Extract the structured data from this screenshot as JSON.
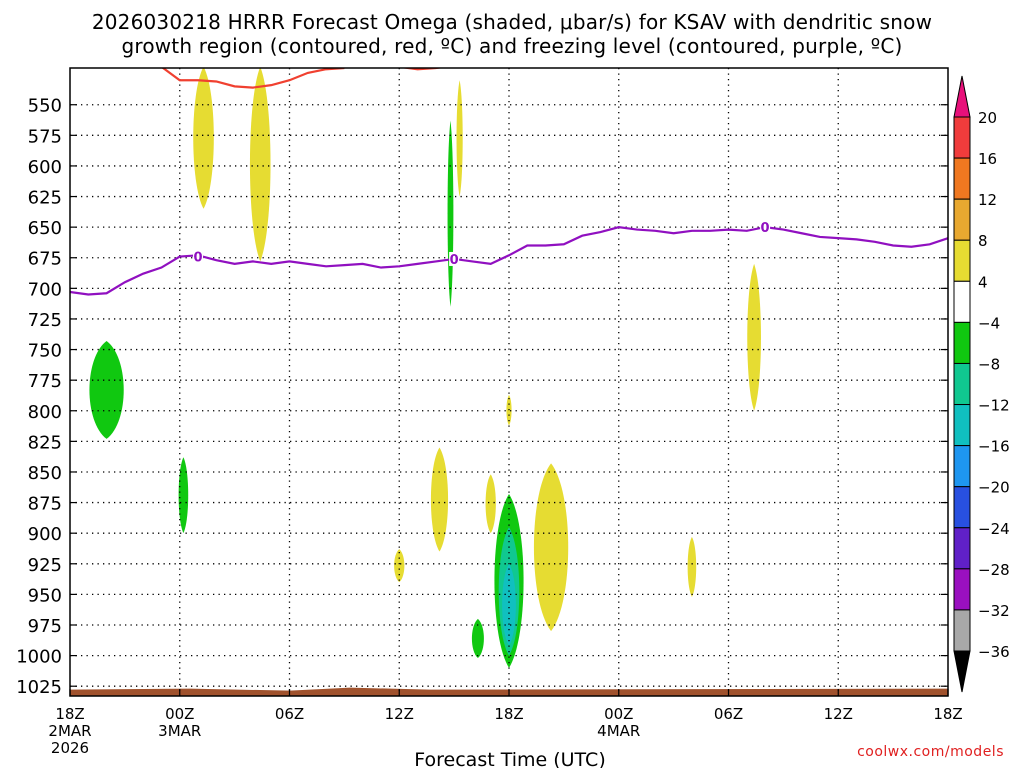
{
  "title_line1": "2026030218 HRRR Forecast Omega (shaded, μbar/s) for KSAV with dendritic snow",
  "title_line2": "growth region (contoured, red, ºC) and freezing level (contoured, purple, ºC)",
  "credit": "coolwx.com/models",
  "chart_data": {
    "type": "heatmap",
    "title": "2026030218 HRRR Forecast Omega (shaded, μbar/s) for KSAV with dendritic snow growth region (contoured, red, ºC) and freezing level (contoured, purple, ºC)",
    "xlabel": "Forecast Time (UTC)",
    "ylabel": "",
    "x_unit": "hours from 2026-03-02 18Z",
    "xlim": [
      0,
      48
    ],
    "ylim": [
      1033,
      520
    ],
    "y_scale": "pressure (hPa), increasing downward",
    "x_ticks": [
      {
        "x": 0,
        "label": "18Z",
        "sub": [
          "2MAR",
          "2026"
        ]
      },
      {
        "x": 6,
        "label": "00Z",
        "sub": [
          "3MAR"
        ]
      },
      {
        "x": 12,
        "label": "06Z",
        "sub": []
      },
      {
        "x": 18,
        "label": "12Z",
        "sub": []
      },
      {
        "x": 24,
        "label": "18Z",
        "sub": []
      },
      {
        "x": 30,
        "label": "00Z",
        "sub": [
          "4MAR"
        ]
      },
      {
        "x": 36,
        "label": "06Z",
        "sub": []
      },
      {
        "x": 42,
        "label": "12Z",
        "sub": []
      },
      {
        "x": 48,
        "label": "18Z",
        "sub": []
      }
    ],
    "y_ticks": [
      550,
      575,
      600,
      625,
      650,
      675,
      700,
      725,
      750,
      775,
      800,
      825,
      850,
      875,
      900,
      925,
      950,
      975,
      1000,
      1025
    ],
    "grid": true,
    "colorbar": {
      "labels": [
        "20",
        "16",
        "12",
        "8",
        "4",
        "−4",
        "−8",
        "−12",
        "−16",
        "−20",
        "−24",
        "−28",
        "−32",
        "−36"
      ],
      "colors": [
        "#f03c3c",
        "#f07820",
        "#e8a830",
        "#e6dc32",
        "#ffffff",
        "#10c810",
        "#10c890",
        "#10c0c0",
        "#1e96f0",
        "#2850e0",
        "#6020c8",
        "#9a10c0",
        "#a8a8a8"
      ],
      "top_arrow_color": "#e8107a",
      "bottom_arrow_color": "#000000"
    },
    "freezing_level": {
      "color": "#9010c0",
      "label": "0",
      "label_positions": [
        [
          7,
          674
        ],
        [
          21,
          676
        ],
        [
          38,
          650
        ]
      ],
      "points": [
        [
          0,
          703
        ],
        [
          1,
          705
        ],
        [
          2,
          704
        ],
        [
          3,
          695
        ],
        [
          4,
          688
        ],
        [
          5,
          683
        ],
        [
          6,
          674
        ],
        [
          7,
          673
        ],
        [
          8,
          677
        ],
        [
          9,
          680
        ],
        [
          10,
          678
        ],
        [
          11,
          680
        ],
        [
          12,
          678
        ],
        [
          13,
          680
        ],
        [
          14,
          682
        ],
        [
          15,
          681
        ],
        [
          16,
          680
        ],
        [
          17,
          683
        ],
        [
          18,
          682
        ],
        [
          19,
          680
        ],
        [
          20,
          678
        ],
        [
          21,
          676
        ],
        [
          22,
          678
        ],
        [
          23,
          680
        ],
        [
          24,
          673
        ],
        [
          25,
          665
        ],
        [
          26,
          665
        ],
        [
          27,
          664
        ],
        [
          28,
          657
        ],
        [
          29,
          654
        ],
        [
          30,
          650
        ],
        [
          31,
          652
        ],
        [
          32,
          653
        ],
        [
          33,
          655
        ],
        [
          34,
          653
        ],
        [
          35,
          653
        ],
        [
          36,
          652
        ],
        [
          37,
          653
        ],
        [
          38,
          650
        ],
        [
          39,
          652
        ],
        [
          40,
          655
        ],
        [
          41,
          658
        ],
        [
          42,
          659
        ],
        [
          43,
          660
        ],
        [
          44,
          662
        ],
        [
          45,
          665
        ],
        [
          46,
          666
        ],
        [
          47,
          664
        ],
        [
          48,
          659
        ]
      ]
    },
    "dgz_contour": {
      "color": "#f04030",
      "segments": [
        [
          [
            5,
            519
          ],
          [
            6,
            530
          ],
          [
            7,
            530
          ],
          [
            8,
            531
          ],
          [
            9,
            535
          ],
          [
            10,
            536
          ],
          [
            11,
            534
          ],
          [
            12,
            530
          ],
          [
            13,
            524
          ],
          [
            14,
            521
          ],
          [
            15,
            520
          ]
        ],
        [
          [
            18,
            519
          ],
          [
            19,
            521
          ],
          [
            20,
            520
          ],
          [
            20.5,
            519
          ]
        ]
      ]
    },
    "omega_regions": [
      {
        "value": 4,
        "color": "#e6dc32",
        "x_center": 7.3,
        "p_top": 519,
        "p_bottom": 635,
        "half_width_h": 0.6
      },
      {
        "value": 4,
        "color": "#e6dc32",
        "x_center": 10.4,
        "p_top": 519,
        "p_bottom": 678,
        "half_width_h": 0.6
      },
      {
        "value": 4,
        "color": "#e6dc32",
        "x_center": 21.3,
        "p_top": 530,
        "p_bottom": 625,
        "half_width_h": 0.18
      },
      {
        "value": 4,
        "color": "#e6dc32",
        "x_center": 37.4,
        "p_top": 680,
        "p_bottom": 800,
        "half_width_h": 0.4
      },
      {
        "value": 4,
        "color": "#e6dc32",
        "x_center": 24,
        "p_top": 787,
        "p_bottom": 812,
        "half_width_h": 0.15
      },
      {
        "value": 4,
        "color": "#e6dc32",
        "x_center": 20.2,
        "p_top": 830,
        "p_bottom": 915,
        "half_width_h": 0.5
      },
      {
        "value": 4,
        "color": "#e6dc32",
        "x_center": 23,
        "p_top": 852,
        "p_bottom": 900,
        "half_width_h": 0.3
      },
      {
        "value": 4,
        "color": "#e6dc32",
        "x_center": 26.3,
        "p_top": 843,
        "p_bottom": 980,
        "half_width_h": 1.0
      },
      {
        "value": 4,
        "color": "#e6dc32",
        "x_center": 18,
        "p_top": 913,
        "p_bottom": 940,
        "half_width_h": 0.3
      },
      {
        "value": 4,
        "color": "#e6dc32",
        "x_center": 34,
        "p_top": 903,
        "p_bottom": 952,
        "half_width_h": 0.25
      },
      {
        "value": -4,
        "color": "#10c810",
        "x_center": 20.8,
        "p_top": 563,
        "p_bottom": 715,
        "half_width_h": 0.17
      },
      {
        "value": -4,
        "color": "#10c810",
        "x_center": 2,
        "p_top": 743,
        "p_bottom": 823,
        "half_width_h": 1.0
      },
      {
        "value": -4,
        "color": "#10c810",
        "x_center": 6.2,
        "p_top": 838,
        "p_bottom": 900,
        "half_width_h": 0.28
      },
      {
        "value": -4,
        "color": "#10c810",
        "x_center": 22.3,
        "p_top": 970,
        "p_bottom": 1002,
        "half_width_h": 0.35
      },
      {
        "value": -4,
        "color": "#10c810",
        "x_center": 24,
        "p_top": 868,
        "p_bottom": 1010,
        "half_width_h": 0.85
      },
      {
        "value": -8,
        "color": "#10c890",
        "x_center": 24,
        "p_top": 895,
        "p_bottom": 1000,
        "half_width_h": 0.6
      },
      {
        "value": -12,
        "color": "#10c0c0",
        "x_center": 24,
        "p_top": 925,
        "p_bottom": 992,
        "half_width_h": 0.4
      }
    ],
    "ground": {
      "color": "#a0522d",
      "p_top": 1027
    }
  }
}
